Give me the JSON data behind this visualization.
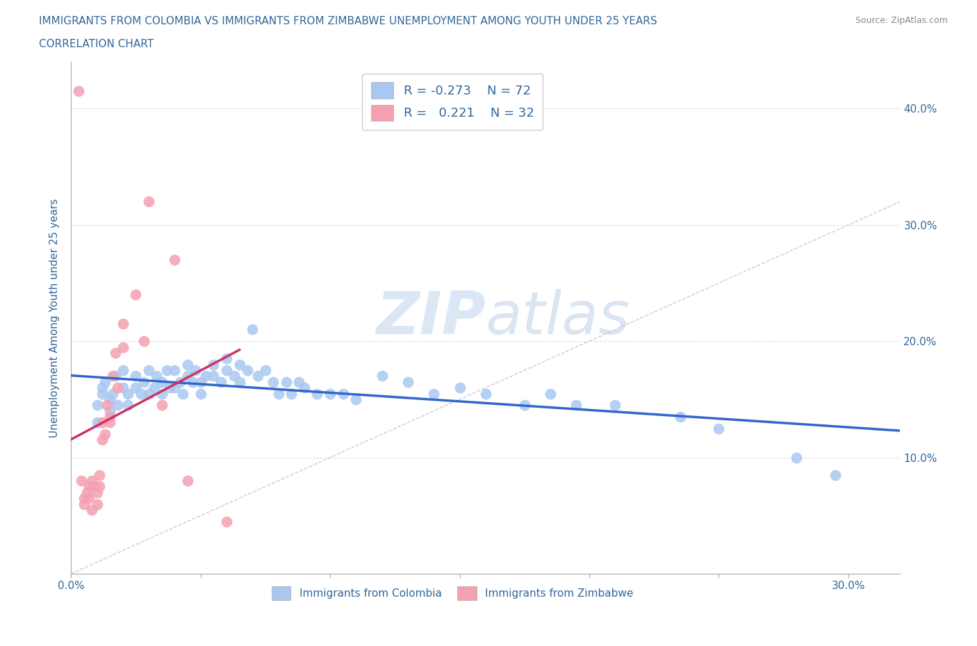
{
  "title_line1": "IMMIGRANTS FROM COLOMBIA VS IMMIGRANTS FROM ZIMBABWE UNEMPLOYMENT AMONG YOUTH UNDER 25 YEARS",
  "title_line2": "CORRELATION CHART",
  "source_text": "Source: ZipAtlas.com",
  "ylabel": "Unemployment Among Youth under 25 years",
  "xlim": [
    0.0,
    0.32
  ],
  "ylim": [
    0.0,
    0.44
  ],
  "colombia_R": -0.273,
  "colombia_N": 72,
  "zimbabwe_R": 0.221,
  "zimbabwe_N": 32,
  "colombia_color": "#a8c8f0",
  "zimbabwe_color": "#f4a0b0",
  "colombia_line_color": "#3366cc",
  "zimbabwe_line_color": "#cc3366",
  "colombia_scatter_x": [
    0.01,
    0.01,
    0.012,
    0.012,
    0.013,
    0.015,
    0.015,
    0.016,
    0.017,
    0.018,
    0.02,
    0.02,
    0.022,
    0.022,
    0.025,
    0.025,
    0.027,
    0.028,
    0.03,
    0.03,
    0.032,
    0.033,
    0.035,
    0.035,
    0.037,
    0.038,
    0.04,
    0.04,
    0.042,
    0.043,
    0.045,
    0.045,
    0.047,
    0.048,
    0.05,
    0.05,
    0.052,
    0.055,
    0.055,
    0.058,
    0.06,
    0.06,
    0.063,
    0.065,
    0.065,
    0.068,
    0.07,
    0.072,
    0.075,
    0.078,
    0.08,
    0.083,
    0.085,
    0.088,
    0.09,
    0.095,
    0.1,
    0.105,
    0.11,
    0.12,
    0.13,
    0.14,
    0.15,
    0.16,
    0.175,
    0.185,
    0.195,
    0.21,
    0.235,
    0.25,
    0.28,
    0.295
  ],
  "colombia_scatter_y": [
    0.145,
    0.13,
    0.155,
    0.16,
    0.165,
    0.15,
    0.14,
    0.155,
    0.17,
    0.145,
    0.16,
    0.175,
    0.155,
    0.145,
    0.17,
    0.16,
    0.155,
    0.165,
    0.175,
    0.155,
    0.16,
    0.17,
    0.155,
    0.165,
    0.175,
    0.16,
    0.16,
    0.175,
    0.165,
    0.155,
    0.17,
    0.18,
    0.165,
    0.175,
    0.165,
    0.155,
    0.17,
    0.18,
    0.17,
    0.165,
    0.175,
    0.185,
    0.17,
    0.18,
    0.165,
    0.175,
    0.21,
    0.17,
    0.175,
    0.165,
    0.155,
    0.165,
    0.155,
    0.165,
    0.16,
    0.155,
    0.155,
    0.155,
    0.15,
    0.17,
    0.165,
    0.155,
    0.16,
    0.155,
    0.145,
    0.155,
    0.145,
    0.145,
    0.135,
    0.125,
    0.1,
    0.085
  ],
  "zimbabwe_scatter_x": [
    0.003,
    0.004,
    0.005,
    0.005,
    0.006,
    0.007,
    0.007,
    0.008,
    0.008,
    0.009,
    0.01,
    0.01,
    0.011,
    0.011,
    0.012,
    0.012,
    0.013,
    0.014,
    0.015,
    0.015,
    0.016,
    0.017,
    0.018,
    0.02,
    0.02,
    0.025,
    0.028,
    0.03,
    0.035,
    0.04,
    0.045,
    0.06
  ],
  "zimbabwe_scatter_y": [
    0.415,
    0.08,
    0.065,
    0.06,
    0.07,
    0.075,
    0.065,
    0.08,
    0.055,
    0.075,
    0.07,
    0.06,
    0.085,
    0.075,
    0.115,
    0.13,
    0.12,
    0.145,
    0.135,
    0.13,
    0.17,
    0.19,
    0.16,
    0.215,
    0.195,
    0.24,
    0.2,
    0.32,
    0.145,
    0.27,
    0.08,
    0.045
  ],
  "watermark_color": "#d0e4f7",
  "background_color": "#ffffff",
  "grid_color": "#dddddd",
  "title_color": "#336699",
  "axis_color": "#336699"
}
